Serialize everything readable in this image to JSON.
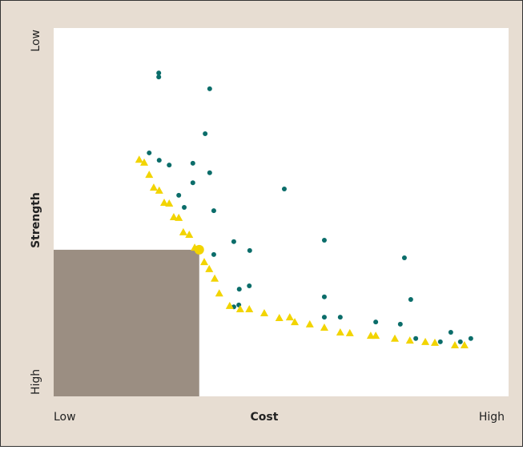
{
  "chart_data": {
    "type": "scatter",
    "x_label": "Cost",
    "y_label": "Strength",
    "xlim": [
      0,
      100
    ],
    "ylim": [
      100,
      0
    ],
    "xticks": [
      {
        "value": 0,
        "label": "Low"
      },
      {
        "value": 100,
        "label": "High"
      }
    ],
    "yticks": [
      {
        "value": 0,
        "label": "Low"
      },
      {
        "value": 100,
        "label": "High"
      }
    ],
    "series": [
      {
        "color": "#0b6d6a",
        "marker": "circle",
        "x": [
          23.1,
          23.1,
          34.3,
          33.3,
          21.0,
          23.2,
          25.4,
          30.6,
          34.3,
          30.6,
          27.5,
          28.7,
          35.2,
          50.7,
          59.5,
          39.6,
          43.1,
          35.2,
          77.1,
          40.8,
          43.0,
          59.5,
          78.5,
          39.6,
          40.7,
          59.5,
          63.0,
          70.8,
          76.2,
          79.6,
          85.0,
          87.3,
          89.4,
          91.7
        ],
        "values": [
          12.2,
          13.3,
          16.5,
          28.7,
          33.9,
          35.9,
          37.2,
          36.7,
          39.3,
          42.0,
          45.4,
          48.7,
          49.6,
          43.7,
          57.6,
          58.0,
          60.4,
          61.5,
          62.4,
          70.9,
          70.0,
          73.0,
          73.7,
          75.7,
          75.2,
          78.5,
          78.5,
          79.8,
          80.4,
          84.3,
          85.2,
          82.6,
          85.2,
          84.3
        ]
      },
      {
        "color": "#f2d400",
        "marker": "triangle",
        "x": [
          18.8,
          19.9,
          21.0,
          22.0,
          23.2,
          24.3,
          25.4,
          26.4,
          27.5,
          28.5,
          29.8,
          31.0,
          33.1,
          34.2,
          35.4,
          36.4,
          38.7,
          41.0,
          43.0,
          46.3,
          49.6,
          51.9,
          53.0,
          56.3,
          59.5,
          63.0,
          65.1,
          69.7,
          70.8,
          75.0,
          78.3,
          81.7,
          83.8,
          88.2,
          90.3
        ],
        "values": [
          35.7,
          36.5,
          39.8,
          43.3,
          44.1,
          47.4,
          47.6,
          51.3,
          51.5,
          55.4,
          56.1,
          59.6,
          63.5,
          65.4,
          68.0,
          72.0,
          75.4,
          76.3,
          76.3,
          77.4,
          78.7,
          78.5,
          79.8,
          80.4,
          81.3,
          82.6,
          82.8,
          83.5,
          83.5,
          84.3,
          84.8,
          85.2,
          85.4,
          86.1,
          86.1
        ]
      },
      {
        "color": "#f2d400",
        "marker": "big-circle",
        "x": [
          32.0
        ],
        "values": [
          60.2
        ]
      }
    ]
  }
}
